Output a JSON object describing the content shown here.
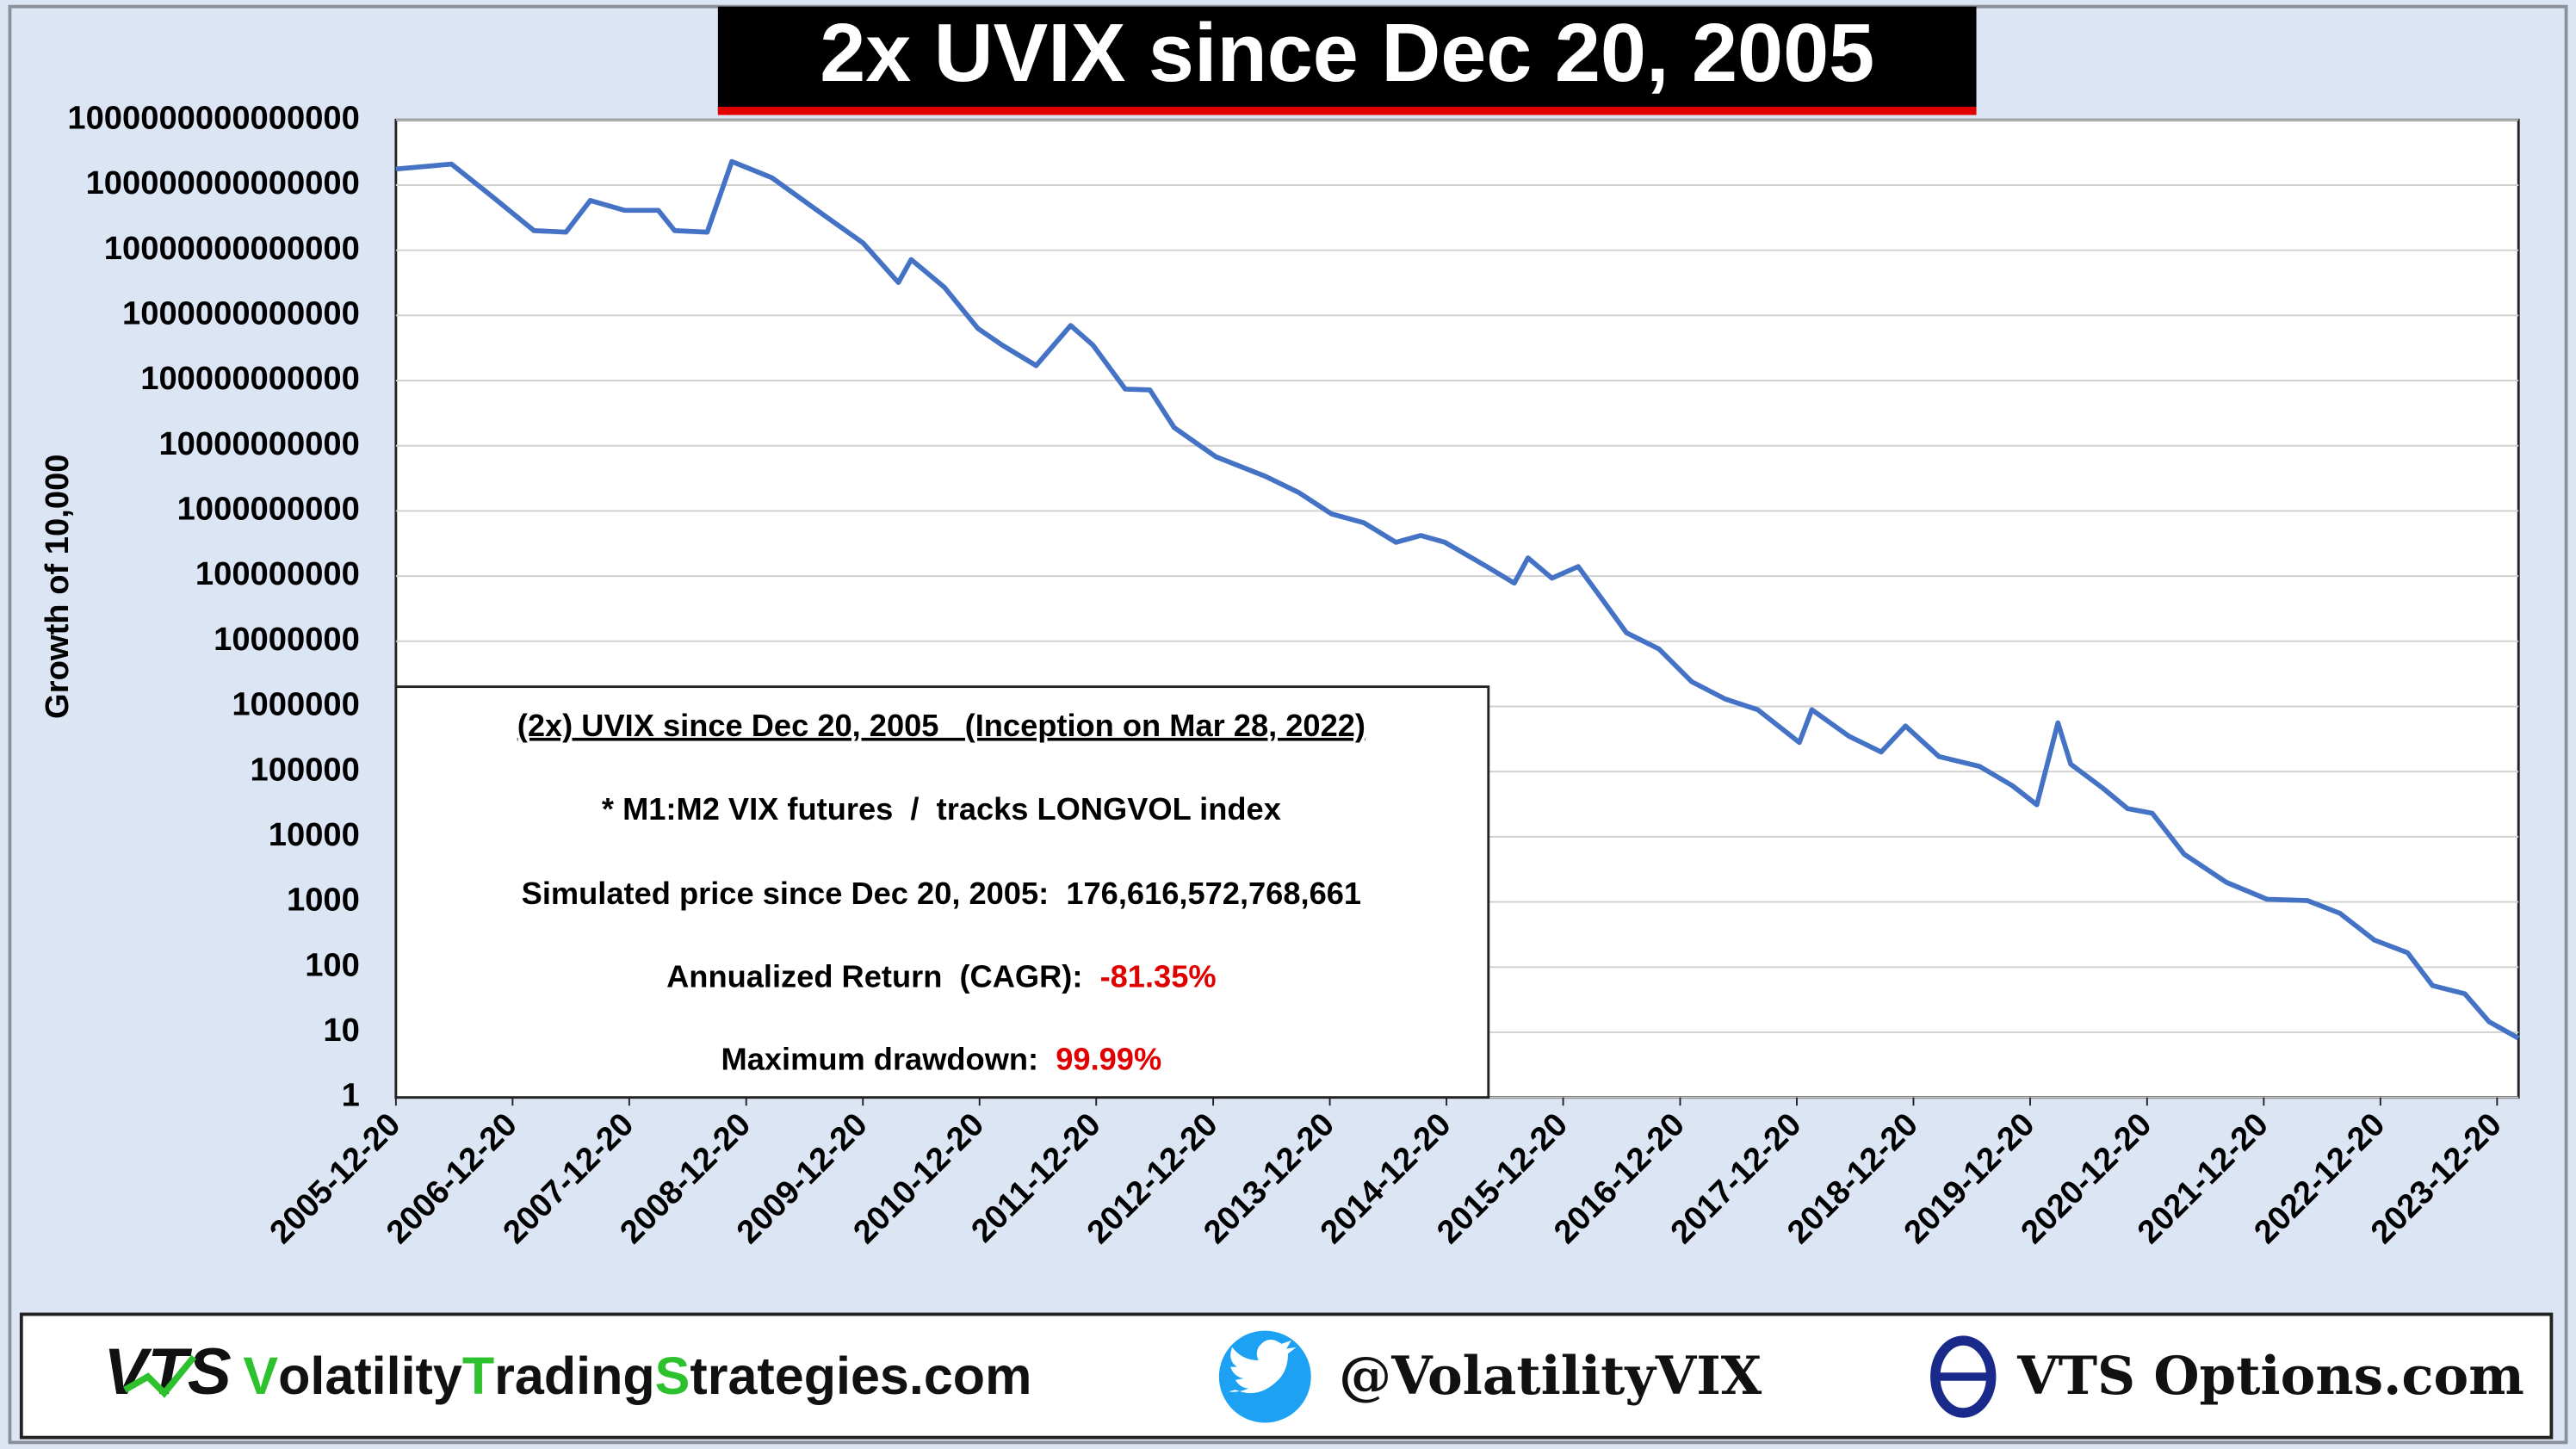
{
  "chart_data": {
    "type": "line",
    "title": "2x UVIX since Dec 20, 2005",
    "y_label": "Growth of 10,000",
    "log_scale": true,
    "grid": true,
    "color": "#4472c4",
    "x": [
      "2005-12-20",
      "2006-06-12",
      "2006-10-20",
      "2007-02-25",
      "2007-06-05",
      "2007-08-20",
      "2007-12-05",
      "2008-03-20",
      "2008-05-10",
      "2008-08-20",
      "2008-11-05",
      "2009-03-10",
      "2009-08-15",
      "2009-12-20",
      "2010-04-10",
      "2010-05-20",
      "2010-09-01",
      "2010-12-15",
      "2011-03-01",
      "2011-06-15",
      "2011-10-01",
      "2011-12-10",
      "2012-03-20",
      "2012-06-05",
      "2012-08-20",
      "2012-12-28",
      "2013-06-01",
      "2013-09-15",
      "2013-12-25",
      "2014-04-05",
      "2014-07-15",
      "2014-10-01",
      "2014-12-15",
      "2015-04-25",
      "2015-07-20",
      "2015-09-01",
      "2015-11-15",
      "2016-02-05",
      "2016-04-20",
      "2016-07-05",
      "2016-10-15",
      "2017-01-25",
      "2017-05-10",
      "2017-08-20",
      "2017-12-28",
      "2018-02-05",
      "2018-06-01",
      "2018-09-10",
      "2018-11-25",
      "2019-03-10",
      "2019-07-15",
      "2019-10-25",
      "2020-01-10",
      "2020-03-16",
      "2020-04-25",
      "2020-08-05",
      "2020-10-20",
      "2021-01-05",
      "2021-04-15",
      "2021-08-25",
      "2021-12-30",
      "2022-05-05",
      "2022-08-15",
      "2022-12-01",
      "2023-03-15",
      "2023-06-01",
      "2023-09-10",
      "2023-11-25",
      "2024-02-25"
    ],
    "values": [
      176616572768661,
      210000000000000,
      65000000000000,
      20000000000000,
      19000000000000,
      58000000000000,
      41000000000000,
      41000000000000,
      20000000000000,
      19000000000000,
      230000000000000,
      130000000000000,
      36000000000000,
      13000000000000,
      3200000000000,
      7200000000000,
      2700000000000,
      630000000000,
      350000000000,
      170000000000,
      700000000000,
      350000000000,
      74000000000,
      72000000000,
      19000000000,
      6800000000,
      3400000000,
      1900000000,
      900000000,
      660000000,
      330000000,
      420000000,
      330000000,
      140000000,
      78000000,
      190000000,
      93000000,
      140000000,
      44000000,
      13500000,
      7600000,
      2400000,
      1300000,
      890000,
      280000,
      890000,
      350000,
      200000,
      500000,
      170000,
      120000,
      61000,
      31000,
      560000,
      130000,
      55000,
      27000,
      23000,
      5400,
      2000,
      1100,
      1050,
      670,
      260,
      166,
      52,
      39,
      14.5,
      8.1
    ],
    "xlim": [
      "2005-12-20",
      "2024-02-25"
    ],
    "xticks": [
      "2005-12-20",
      "2006-12-20",
      "2007-12-20",
      "2008-12-20",
      "2009-12-20",
      "2010-12-20",
      "2011-12-20",
      "2012-12-20",
      "2013-12-20",
      "2014-12-20",
      "2015-12-20",
      "2016-12-20",
      "2017-12-20",
      "2018-12-20",
      "2019-12-20",
      "2020-12-20",
      "2021-12-20",
      "2022-12-20",
      "2023-12-20"
    ],
    "ylim": [
      1,
      1000000000000000
    ],
    "yticks": [
      1,
      10,
      100,
      1000,
      10000,
      100000,
      1000000,
      10000000,
      100000000,
      1000000000,
      10000000000,
      100000000000,
      1000000000000,
      10000000000000,
      100000000000000,
      1000000000000000
    ],
    "info_box": {
      "title": "(2x) UVIX since Dec 20, 2005   (Inception on Mar 28, 2022)",
      "note": "* M1:M2 VIX futures  /  tracks LONGVOL index",
      "lines": [
        {
          "label": "Simulated price since Dec 20, 2005:  ",
          "value": "176,616,572,768,661",
          "color": "#000000"
        },
        {
          "label": "Annualized Return  (CAGR):  ",
          "value": "-81.35%",
          "color": "#e00000"
        },
        {
          "label": "Maximum drawdown:  ",
          "value": "99.99%",
          "color": "#e00000"
        }
      ]
    }
  },
  "footer": {
    "logo": "VTS",
    "site": [
      "V",
      "olatility",
      "T",
      "rading",
      "S",
      "trategies.com"
    ],
    "twitter": "@VolatilityVIX",
    "options": "VTS Options.com"
  }
}
